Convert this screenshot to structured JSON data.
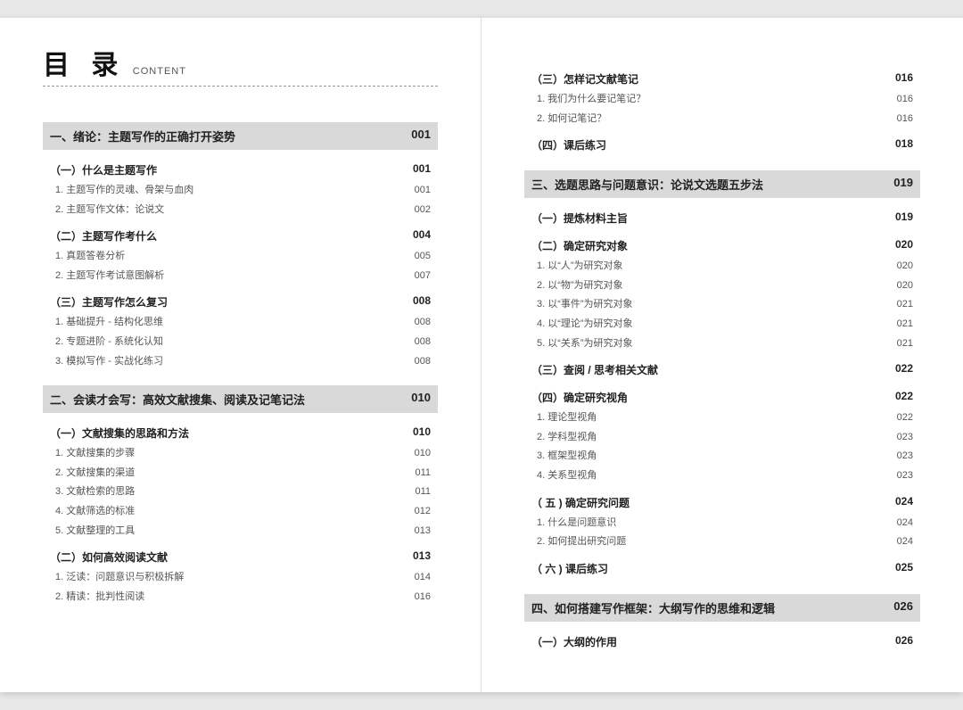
{
  "title_main": "目 录",
  "title_sub": "CONTENT",
  "left": [
    {
      "type": "chapter",
      "label": "一、绪论：主题写作的正确打开姿势",
      "page": "001"
    },
    {
      "type": "section",
      "label": "（一）什么是主题写作",
      "page": "001"
    },
    {
      "type": "item",
      "label": "1. 主题写作的灵魂、骨架与血肉",
      "page": "001"
    },
    {
      "type": "item",
      "label": "2. 主题写作文体：论说文",
      "page": "002"
    },
    {
      "type": "section",
      "label": "（二）主题写作考什么",
      "page": "004"
    },
    {
      "type": "item",
      "label": "1. 真题答卷分析",
      "page": "005"
    },
    {
      "type": "item",
      "label": "2. 主题写作考试意图解析",
      "page": "007"
    },
    {
      "type": "section",
      "label": "（三）主题写作怎么复习",
      "page": "008"
    },
    {
      "type": "item",
      "label": "1. 基础提升 - 结构化思维",
      "page": "008"
    },
    {
      "type": "item",
      "label": "2. 专题进阶 - 系统化认知",
      "page": "008"
    },
    {
      "type": "item",
      "label": "3. 模拟写作 - 实战化练习",
      "page": "008"
    },
    {
      "type": "chapter",
      "label": "二、会读才会写：高效文献搜集、阅读及记笔记法",
      "page": "010"
    },
    {
      "type": "section",
      "label": "（一）文献搜集的思路和方法",
      "page": "010"
    },
    {
      "type": "item",
      "label": "1. 文献搜集的步骤",
      "page": "010"
    },
    {
      "type": "item",
      "label": "2. 文献搜集的渠道",
      "page": "011"
    },
    {
      "type": "item",
      "label": "3. 文献检索的思路",
      "page": "011"
    },
    {
      "type": "item",
      "label": "4. 文献筛选的标准",
      "page": "012"
    },
    {
      "type": "item",
      "label": "5. 文献整理的工具",
      "page": "013"
    },
    {
      "type": "section",
      "label": "（二）如何高效阅读文献",
      "page": "013"
    },
    {
      "type": "item",
      "label": "1. 泛读：问题意识与积极拆解",
      "page": "014"
    },
    {
      "type": "item",
      "label": "2. 精读：批判性阅读",
      "page": "016"
    }
  ],
  "right": [
    {
      "type": "section",
      "label": "（三）怎样记文献笔记",
      "page": "016"
    },
    {
      "type": "item",
      "label": "1. 我们为什么要记笔记？",
      "page": "016"
    },
    {
      "type": "item",
      "label": "2. 如何记笔记？",
      "page": "016"
    },
    {
      "type": "section",
      "label": "（四）课后练习",
      "page": "018"
    },
    {
      "type": "chapter",
      "label": "三、选题思路与问题意识：论说文选题五步法",
      "page": "019"
    },
    {
      "type": "section",
      "label": "（一）提炼材料主旨",
      "page": "019"
    },
    {
      "type": "section",
      "label": "（二）确定研究对象",
      "page": "020"
    },
    {
      "type": "item",
      "label": "1. 以“人”为研究对象",
      "page": "020"
    },
    {
      "type": "item",
      "label": "2. 以“物”为研究对象",
      "page": "020"
    },
    {
      "type": "item",
      "label": "3. 以“事件”为研究对象",
      "page": "021"
    },
    {
      "type": "item",
      "label": "4. 以“理论”为研究对象",
      "page": "021"
    },
    {
      "type": "item",
      "label": "5. 以“关系”为研究对象",
      "page": "021"
    },
    {
      "type": "section",
      "label": "（三）查阅 / 思考相关文献",
      "page": "022"
    },
    {
      "type": "section",
      "label": "（四）确定研究视角",
      "page": "022"
    },
    {
      "type": "item",
      "label": "1. 理论型视角",
      "page": "022"
    },
    {
      "type": "item",
      "label": "2. 学科型视角",
      "page": "023"
    },
    {
      "type": "item",
      "label": "3. 框架型视角",
      "page": "023"
    },
    {
      "type": "item",
      "label": "4. 关系型视角",
      "page": "023"
    },
    {
      "type": "section",
      "label": "（ 五 ) 确定研究问题",
      "page": "024"
    },
    {
      "type": "item",
      "label": "1. 什么是问题意识",
      "page": "024"
    },
    {
      "type": "item",
      "label": "2. 如何提出研究问题",
      "page": "024"
    },
    {
      "type": "section",
      "label": "（ 六 ) 课后练习",
      "page": "025"
    },
    {
      "type": "chapter",
      "label": "四、如何搭建写作框架：大纲写作的思维和逻辑",
      "page": "026"
    },
    {
      "type": "section",
      "label": "（一）大纲的作用",
      "page": "026"
    }
  ]
}
